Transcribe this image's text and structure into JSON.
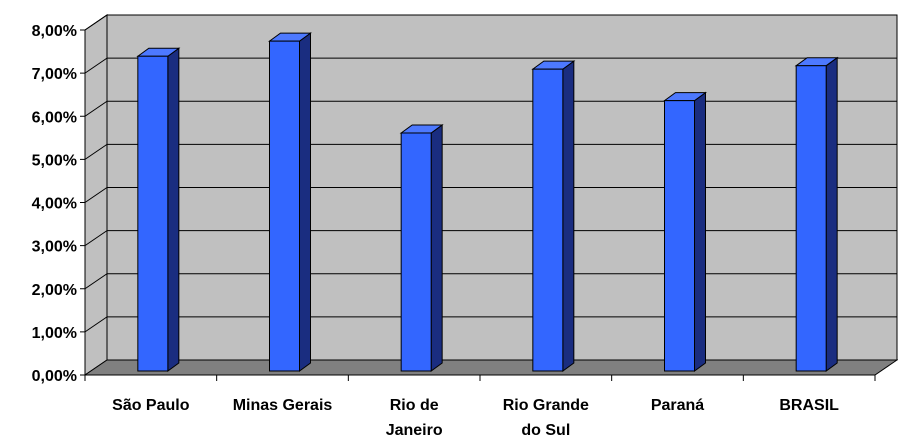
{
  "chart_data": {
    "type": "bar",
    "style": "3d-column",
    "categories": [
      [
        "São Paulo"
      ],
      [
        "Minas Gerais"
      ],
      [
        "Rio de",
        "Janeiro"
      ],
      [
        "Rio Grande",
        "do Sul"
      ],
      [
        "Paraná"
      ],
      [
        "BRASIL"
      ]
    ],
    "values": [
      7.45,
      7.8,
      5.67,
      7.15,
      6.42,
      7.23
    ],
    "ylim": [
      0,
      8
    ],
    "yticks": [
      "0,00%",
      "1,00%",
      "2,00%",
      "3,00%",
      "4,00%",
      "5,00%",
      "6,00%",
      "7,00%",
      "8,00%"
    ],
    "title": "",
    "xlabel": "",
    "ylabel": "",
    "grid": true,
    "legend": "none",
    "colors": {
      "bar_front": "#3366ff",
      "bar_side": "#1a2d80",
      "bar_top": "#4d79ff",
      "wall": "#c0c0c0",
      "floor": "#808080",
      "gridline": "#000000"
    }
  }
}
